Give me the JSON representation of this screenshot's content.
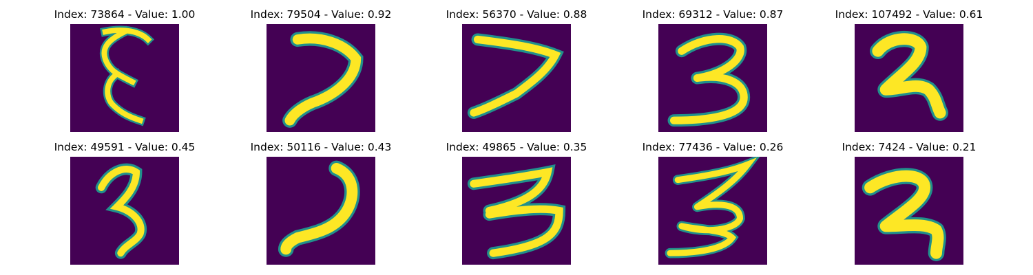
{
  "colors": {
    "background": "#440154",
    "mid": "#21908c",
    "stroke": "#fde725"
  },
  "panels": [
    {
      "title": "Index: 73864 - Value: 1.00",
      "digit": "vertical squiggle"
    },
    {
      "title": "Index: 79504 - Value: 0.92",
      "digit": "7-like"
    },
    {
      "title": "Index: 56370 - Value: 0.88",
      "digit": "7-like"
    },
    {
      "title": "Index: 69312 - Value: 0.87",
      "digit": "3"
    },
    {
      "title": "Index: 107492 - Value: 0.61",
      "digit": "2-like"
    },
    {
      "title": "Index: 49591 - Value: 0.45",
      "digit": "3"
    },
    {
      "title": "Index: 50116 - Value: 0.43",
      "digit": "7-like"
    },
    {
      "title": "Index: 49865 - Value: 0.35",
      "digit": "3"
    },
    {
      "title": "Index: 77436 - Value: 0.26",
      "digit": "3"
    },
    {
      "title": "Index: 7424 - Value: 0.21",
      "digit": "2-like"
    }
  ]
}
